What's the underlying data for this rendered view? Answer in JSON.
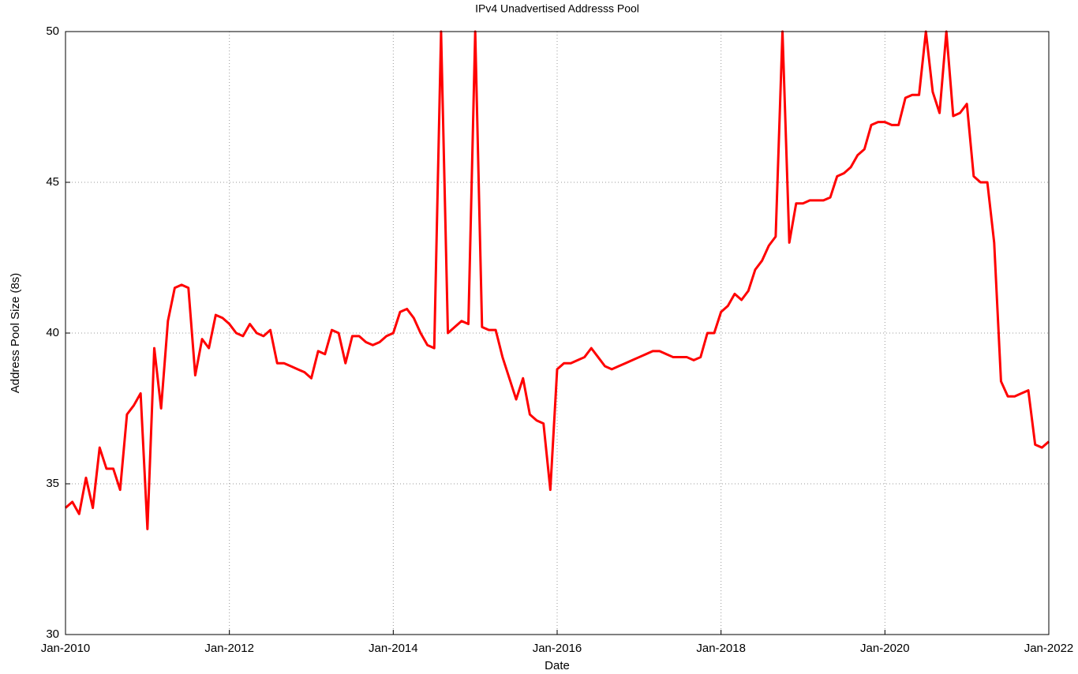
{
  "chart_data": {
    "type": "line",
    "title": "IPv4 Unadvertised Addresss Pool",
    "xlabel": "Date",
    "ylabel": "Address Pool Size (8s)",
    "color": "#ff0000",
    "grid": true,
    "ylim": [
      30,
      50
    ],
    "yticks": [
      30,
      35,
      40,
      45,
      50
    ],
    "xlim": [
      "2010-01",
      "2022-01"
    ],
    "xticks": [
      {
        "value": "2010-01",
        "label": "Jan-2010"
      },
      {
        "value": "2012-01",
        "label": "Jan-2012"
      },
      {
        "value": "2014-01",
        "label": "Jan-2014"
      },
      {
        "value": "2016-01",
        "label": "Jan-2016"
      },
      {
        "value": "2018-01",
        "label": "Jan-2018"
      },
      {
        "value": "2020-01",
        "label": "Jan-2020"
      },
      {
        "value": "2022-01",
        "label": "Jan-2022"
      }
    ],
    "x": [
      "2010-01",
      "2010-02",
      "2010-03",
      "2010-04",
      "2010-05",
      "2010-06",
      "2010-07",
      "2010-08",
      "2010-09",
      "2010-10",
      "2010-11",
      "2010-12",
      "2011-01",
      "2011-02",
      "2011-03",
      "2011-04",
      "2011-05",
      "2011-06",
      "2011-07",
      "2011-08",
      "2011-09",
      "2011-10",
      "2011-11",
      "2011-12",
      "2012-01",
      "2012-02",
      "2012-03",
      "2012-04",
      "2012-05",
      "2012-06",
      "2012-07",
      "2012-08",
      "2012-09",
      "2012-10",
      "2012-11",
      "2012-12",
      "2013-01",
      "2013-02",
      "2013-03",
      "2013-04",
      "2013-05",
      "2013-06",
      "2013-07",
      "2013-08",
      "2013-09",
      "2013-10",
      "2013-11",
      "2013-12",
      "2014-01",
      "2014-02",
      "2014-03",
      "2014-04",
      "2014-05",
      "2014-06",
      "2014-07",
      "2014-08",
      "2014-09",
      "2014-10",
      "2014-11",
      "2014-12",
      "2015-01",
      "2015-02",
      "2015-03",
      "2015-04",
      "2015-05",
      "2015-06",
      "2015-07",
      "2015-08",
      "2015-09",
      "2015-10",
      "2015-11",
      "2015-12",
      "2016-01",
      "2016-02",
      "2016-03",
      "2016-04",
      "2016-05",
      "2016-06",
      "2016-07",
      "2016-08",
      "2016-09",
      "2016-10",
      "2016-11",
      "2016-12",
      "2017-01",
      "2017-02",
      "2017-03",
      "2017-04",
      "2017-05",
      "2017-06",
      "2017-07",
      "2017-08",
      "2017-09",
      "2017-10",
      "2017-11",
      "2017-12",
      "2018-01",
      "2018-02",
      "2018-03",
      "2018-04",
      "2018-05",
      "2018-06",
      "2018-07",
      "2018-08",
      "2018-09",
      "2018-10",
      "2018-11",
      "2018-12",
      "2019-01",
      "2019-02",
      "2019-03",
      "2019-04",
      "2019-05",
      "2019-06",
      "2019-07",
      "2019-08",
      "2019-09",
      "2019-10",
      "2019-11",
      "2019-12",
      "2020-01",
      "2020-02",
      "2020-03",
      "2020-04",
      "2020-05",
      "2020-06",
      "2020-07",
      "2020-08",
      "2020-09",
      "2020-10",
      "2020-11",
      "2020-12",
      "2021-01",
      "2021-02",
      "2021-03",
      "2021-04",
      "2021-05",
      "2021-06",
      "2021-07",
      "2021-08",
      "2021-09",
      "2021-10",
      "2021-11",
      "2021-12",
      "2022-01"
    ],
    "values": [
      34.2,
      34.4,
      34.0,
      35.2,
      34.2,
      36.2,
      35.5,
      35.5,
      34.8,
      37.3,
      37.6,
      38.0,
      33.5,
      39.5,
      37.5,
      40.4,
      41.5,
      41.6,
      41.5,
      38.6,
      39.8,
      39.5,
      40.6,
      40.5,
      40.3,
      40.0,
      39.9,
      40.3,
      40.0,
      39.9,
      40.1,
      39.0,
      39.0,
      38.9,
      38.8,
      38.7,
      38.5,
      39.4,
      39.3,
      40.1,
      40.0,
      39.0,
      39.9,
      39.9,
      39.7,
      39.6,
      39.7,
      39.9,
      40.0,
      40.7,
      40.8,
      40.5,
      40.0,
      39.6,
      39.5,
      50.0,
      40.0,
      40.2,
      40.4,
      40.3,
      50.0,
      40.2,
      40.1,
      40.1,
      39.2,
      38.5,
      37.8,
      38.5,
      37.3,
      37.1,
      37.0,
      34.8,
      38.8,
      39.0,
      39.0,
      39.1,
      39.2,
      39.5,
      39.2,
      38.9,
      38.8,
      38.9,
      39.0,
      39.1,
      39.2,
      39.3,
      39.4,
      39.4,
      39.3,
      39.2,
      39.2,
      39.2,
      39.1,
      39.2,
      40.0,
      40.0,
      40.7,
      40.9,
      41.3,
      41.1,
      41.4,
      42.1,
      42.4,
      42.9,
      43.2,
      50.0,
      43.0,
      44.3,
      44.3,
      44.4,
      44.4,
      44.4,
      44.5,
      45.2,
      45.3,
      45.5,
      45.9,
      46.1,
      46.9,
      47.0,
      47.0,
      46.9,
      46.9,
      47.8,
      47.9,
      47.9,
      50.0,
      48.0,
      47.3,
      50.0,
      47.2,
      47.3,
      47.6,
      45.2,
      45.0,
      45.0,
      43.0,
      38.4,
      37.9,
      37.9,
      38.0,
      38.1,
      36.3,
      36.2,
      36.4
    ]
  }
}
